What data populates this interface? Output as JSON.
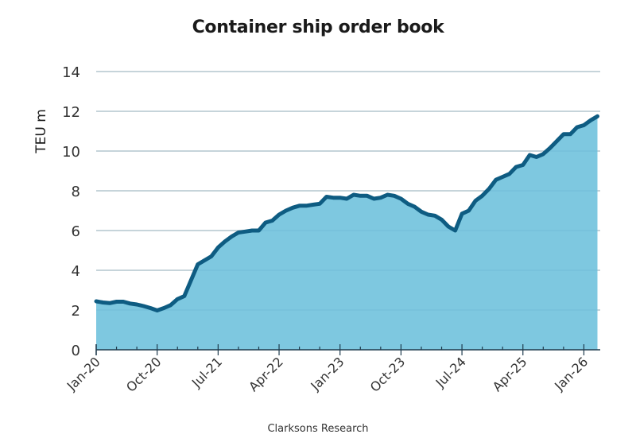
{
  "chart_data": {
    "type": "area",
    "title": "Container ship order book",
    "xlabel": "",
    "ylabel": "TEU m",
    "source": "Clarksons Research",
    "ylim": [
      0,
      14
    ],
    "yticks": [
      0,
      2,
      4,
      6,
      8,
      10,
      12,
      14
    ],
    "xtick_labels": [
      "Jan-20",
      "Oct-20",
      "Jul-21",
      "Apr-22",
      "Jan-23",
      "Oct-23",
      "Jul-24",
      "Apr-25",
      "Jan-26"
    ],
    "xtick_month_index": [
      0,
      9,
      18,
      27,
      36,
      45,
      54,
      63,
      72
    ],
    "minor_tick_every_months": 3,
    "grid": "horizontal",
    "legend": "none",
    "colors": {
      "fill": "#7EC8E0",
      "line": "#0E5C82",
      "grid": "#d0d0d0",
      "axis": "#1f3b4d"
    },
    "x_start": "Jan-20",
    "x_frequency": "monthly",
    "values": [
      2.44,
      2.38,
      2.35,
      2.42,
      2.42,
      2.33,
      2.28,
      2.2,
      2.1,
      1.98,
      2.1,
      2.25,
      2.55,
      2.7,
      3.5,
      4.3,
      4.5,
      4.7,
      5.15,
      5.45,
      5.7,
      5.9,
      5.95,
      6.0,
      6.0,
      6.4,
      6.5,
      6.8,
      7.0,
      7.15,
      7.25,
      7.25,
      7.3,
      7.35,
      7.7,
      7.65,
      7.65,
      7.6,
      7.8,
      7.75,
      7.75,
      7.6,
      7.65,
      7.8,
      7.75,
      7.6,
      7.35,
      7.2,
      6.95,
      6.8,
      6.75,
      6.55,
      6.2,
      6.0,
      6.85,
      7.0,
      7.5,
      7.75,
      8.1,
      8.55,
      8.7,
      8.85,
      9.2,
      9.3,
      9.8,
      9.7,
      9.85,
      10.15,
      10.5,
      10.85,
      10.85,
      11.2,
      11.3,
      11.55,
      11.75
    ]
  }
}
